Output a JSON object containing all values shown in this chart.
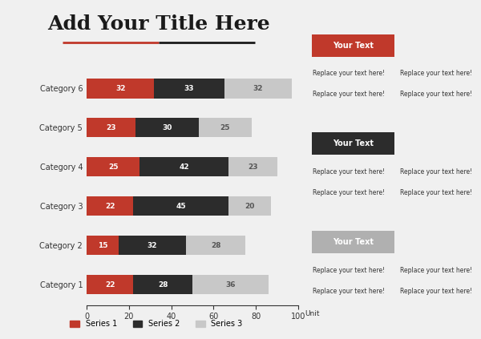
{
  "title": "Add Your Title Here",
  "title_fontsize": 18,
  "background_color": "#f0f0f0",
  "categories": [
    "Category 1",
    "Category 2",
    "Category 3",
    "Category 4",
    "Category 5",
    "Category 6"
  ],
  "series1": [
    22,
    15,
    22,
    25,
    23,
    32
  ],
  "series2": [
    28,
    32,
    45,
    42,
    30,
    33
  ],
  "series3": [
    36,
    28,
    20,
    23,
    25,
    32
  ],
  "color1": "#c0392b",
  "color2": "#2c2c2c",
  "color3": "#c8c8c8",
  "xlabel": "Unit",
  "xlim": [
    0,
    100
  ],
  "xticks": [
    0,
    20,
    40,
    60,
    80,
    100
  ],
  "legend_labels": [
    "Series 1",
    "Series 2",
    "Series 3"
  ],
  "right_panel": {
    "box1_color": "#c0392b",
    "box2_color": "#2c2c2c",
    "box3_color": "#b0b0b0",
    "box_text": "Your Text",
    "body_text": "Replace your text here!",
    "text_color": "#333333"
  }
}
